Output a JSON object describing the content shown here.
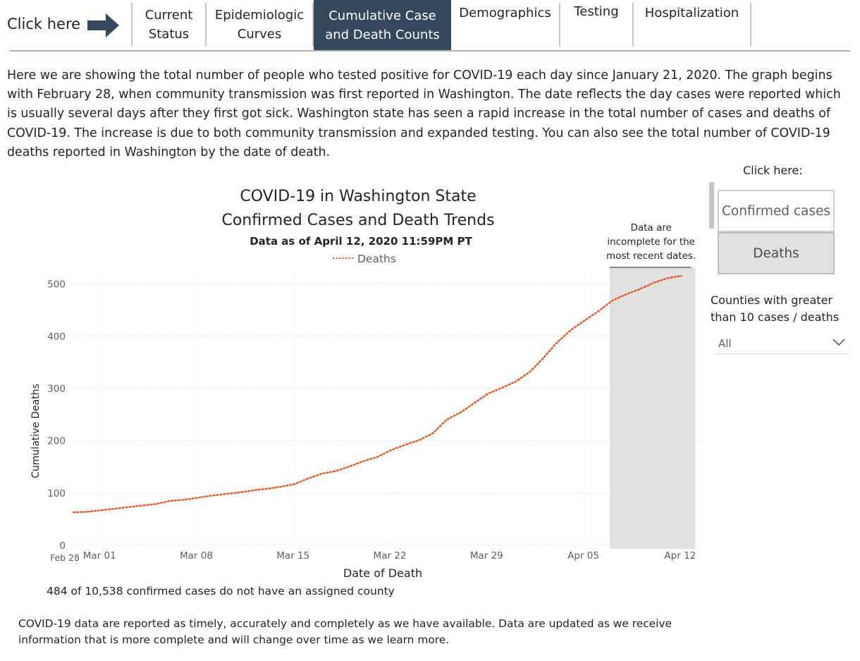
{
  "nav": {
    "click_here": "Click here",
    "tabs": [
      {
        "label": "Current\nStatus",
        "active": false
      },
      {
        "label": "Epidemiologic\nCurves",
        "active": false
      },
      {
        "label": "Cumulative Case\nand Death Counts",
        "active": true
      },
      {
        "label": "Demographics",
        "active": false
      },
      {
        "label": "Testing",
        "active": false
      },
      {
        "label": "Hospitalization",
        "active": false
      }
    ]
  },
  "intro": "Here we are showing the total number of people who tested positive for COVID-19 each day since January 21, 2020. The graph begins with February 28, when community transmission was first reported in Washington. The date reflects the day cases were reported which is usually several days after they first got sick. Washington state has seen a rapid increase in the total number of cases and deaths of COVID-19. The increase is due to both community transmission and expanded testing. You can also see the total number of COVID-19 deaths reported in Washington by the date of death.",
  "side_panel": {
    "click_here": "Click here:",
    "confirmed_button": "Confirmed cases",
    "deaths_button": "Deaths",
    "counties_label": "Counties with greater than 10 cases / deaths",
    "county_select_value": "All"
  },
  "chart_data": {
    "type": "line",
    "title": "COVID-19 in Washington State",
    "subtitle": "Confirmed Cases and Death Trends",
    "data_as_of": "Data as of April 12, 2020 11:59PM PT",
    "legend": [
      "Deaths"
    ],
    "legend_position": "top-center",
    "xlabel": "Date of Death",
    "ylabel": "Cumulative Deaths",
    "ylim": [
      0,
      520
    ],
    "yticks": [
      0,
      100,
      200,
      300,
      400,
      500
    ],
    "xticks": [
      {
        "label": "Feb 28",
        "day": 0
      },
      {
        "label": "Mar 01",
        "day": 2
      },
      {
        "label": "Mar 08",
        "day": 9
      },
      {
        "label": "Mar 15",
        "day": 16
      },
      {
        "label": "Mar 22",
        "day": 23
      },
      {
        "label": "Mar 29",
        "day": 30
      },
      {
        "label": "Apr 05",
        "day": 37
      },
      {
        "label": "Apr 12",
        "day": 44
      }
    ],
    "incomplete_region": {
      "from": "Apr 07",
      "to": "Apr 12",
      "from_day": 38.8,
      "to_day": 45,
      "note": "Data are incomplete for the most recent dates."
    },
    "grid": true,
    "series": [
      {
        "name": "Deaths",
        "color": "#e8561e",
        "style": "dotted",
        "x": [
          0,
          1,
          2,
          3,
          4,
          5,
          6,
          7,
          8,
          9,
          10,
          11,
          12,
          13,
          14,
          15,
          16,
          17,
          18,
          19,
          20,
          21,
          22,
          23,
          24,
          25,
          26,
          27,
          28,
          29,
          30,
          31,
          32,
          33,
          34,
          35,
          36,
          37,
          38,
          39,
          40,
          41,
          42,
          43,
          44
        ],
        "values": [
          63,
          64,
          67,
          70,
          73,
          76,
          79,
          85,
          87,
          91,
          95,
          98,
          101,
          105,
          108,
          112,
          117,
          128,
          137,
          142,
          151,
          161,
          169,
          182,
          192,
          201,
          214,
          240,
          254,
          272,
          290,
          301,
          313,
          331,
          358,
          388,
          412,
          430,
          448,
          468,
          480,
          490,
          502,
          511,
          515
        ]
      }
    ],
    "footnote": "484 of 10,538 confirmed cases do not have an assigned county"
  },
  "footer": "COVID-19 data are reported as timely, accurately and completely as we have available. Data are updated as we receive information that is more complete and will change over time as we learn more.",
  "colors": {
    "active_tab": "#34495e",
    "line": "#e8561e",
    "shade": "#e1e1e1"
  },
  "icons": {
    "arrow": "arrow-right-icon",
    "chevron": "chevron-down-icon"
  }
}
